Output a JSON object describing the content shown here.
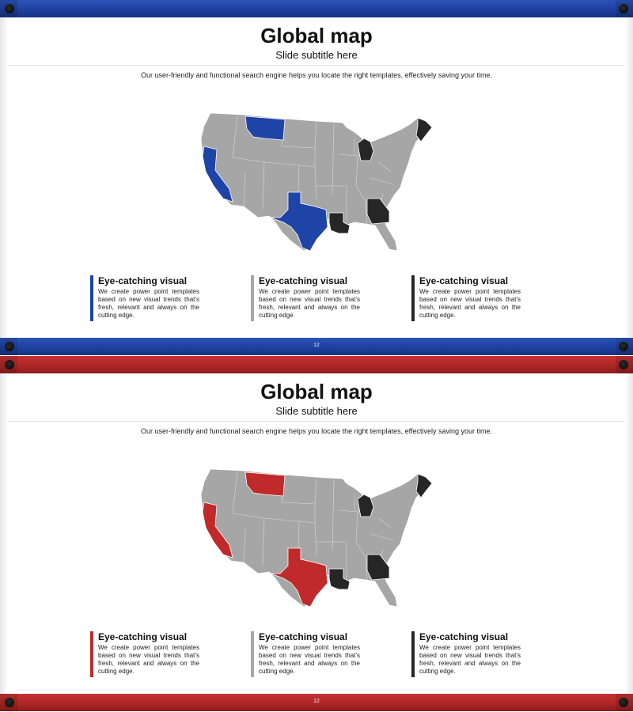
{
  "slides": [
    {
      "theme": "blue",
      "accent": "#1f44a8",
      "title": "Global map",
      "subtitle": "Slide subtitle here",
      "description": "Our user-friendly and functional search engine helps you locate the right templates, effectively saving your time.",
      "page_number": "12",
      "map_highlights": {
        "accent_states": [
          "California",
          "Montana",
          "Texas"
        ],
        "dark_states": [
          "Michigan",
          "Maine",
          "Louisiana",
          "Georgia"
        ]
      },
      "features": [
        {
          "title": "Eye-catching visual",
          "body": "We create power point templates based on new visual trends that’s fresh, relevant and always on the cutting edge.",
          "color": "#1f44a8"
        },
        {
          "title": "Eye-catching visual",
          "body": "We create power point templates based on new visual trends that’s fresh, relevant and always on the cutting edge.",
          "color": "#a6a6a6"
        },
        {
          "title": "Eye-catching visual",
          "body": "We create power point templates based on new visual trends that’s fresh, relevant and always on the cutting edge.",
          "color": "#262626"
        }
      ]
    },
    {
      "theme": "red",
      "accent": "#c02a2a",
      "title": "Global map",
      "subtitle": "Slide subtitle here",
      "description": "Our user-friendly and functional search engine helps you locate the right templates, effectively saving your time.",
      "page_number": "12",
      "map_highlights": {
        "accent_states": [
          "California",
          "Montana",
          "Texas"
        ],
        "dark_states": [
          "Michigan",
          "Maine",
          "Louisiana",
          "Georgia"
        ]
      },
      "features": [
        {
          "title": "Eye-catching visual",
          "body": "We create power point templates based on new visual trends that’s fresh, relevant and always on the cutting edge.",
          "color": "#c02a2a"
        },
        {
          "title": "Eye-catching visual",
          "body": "We create power point templates based on new visual trends that’s fresh, relevant and always on the cutting edge.",
          "color": "#a6a6a6"
        },
        {
          "title": "Eye-catching visual",
          "body": "We create power point templates based on new visual trends that’s fresh, relevant and always on the cutting edge.",
          "color": "#262626"
        }
      ]
    }
  ]
}
